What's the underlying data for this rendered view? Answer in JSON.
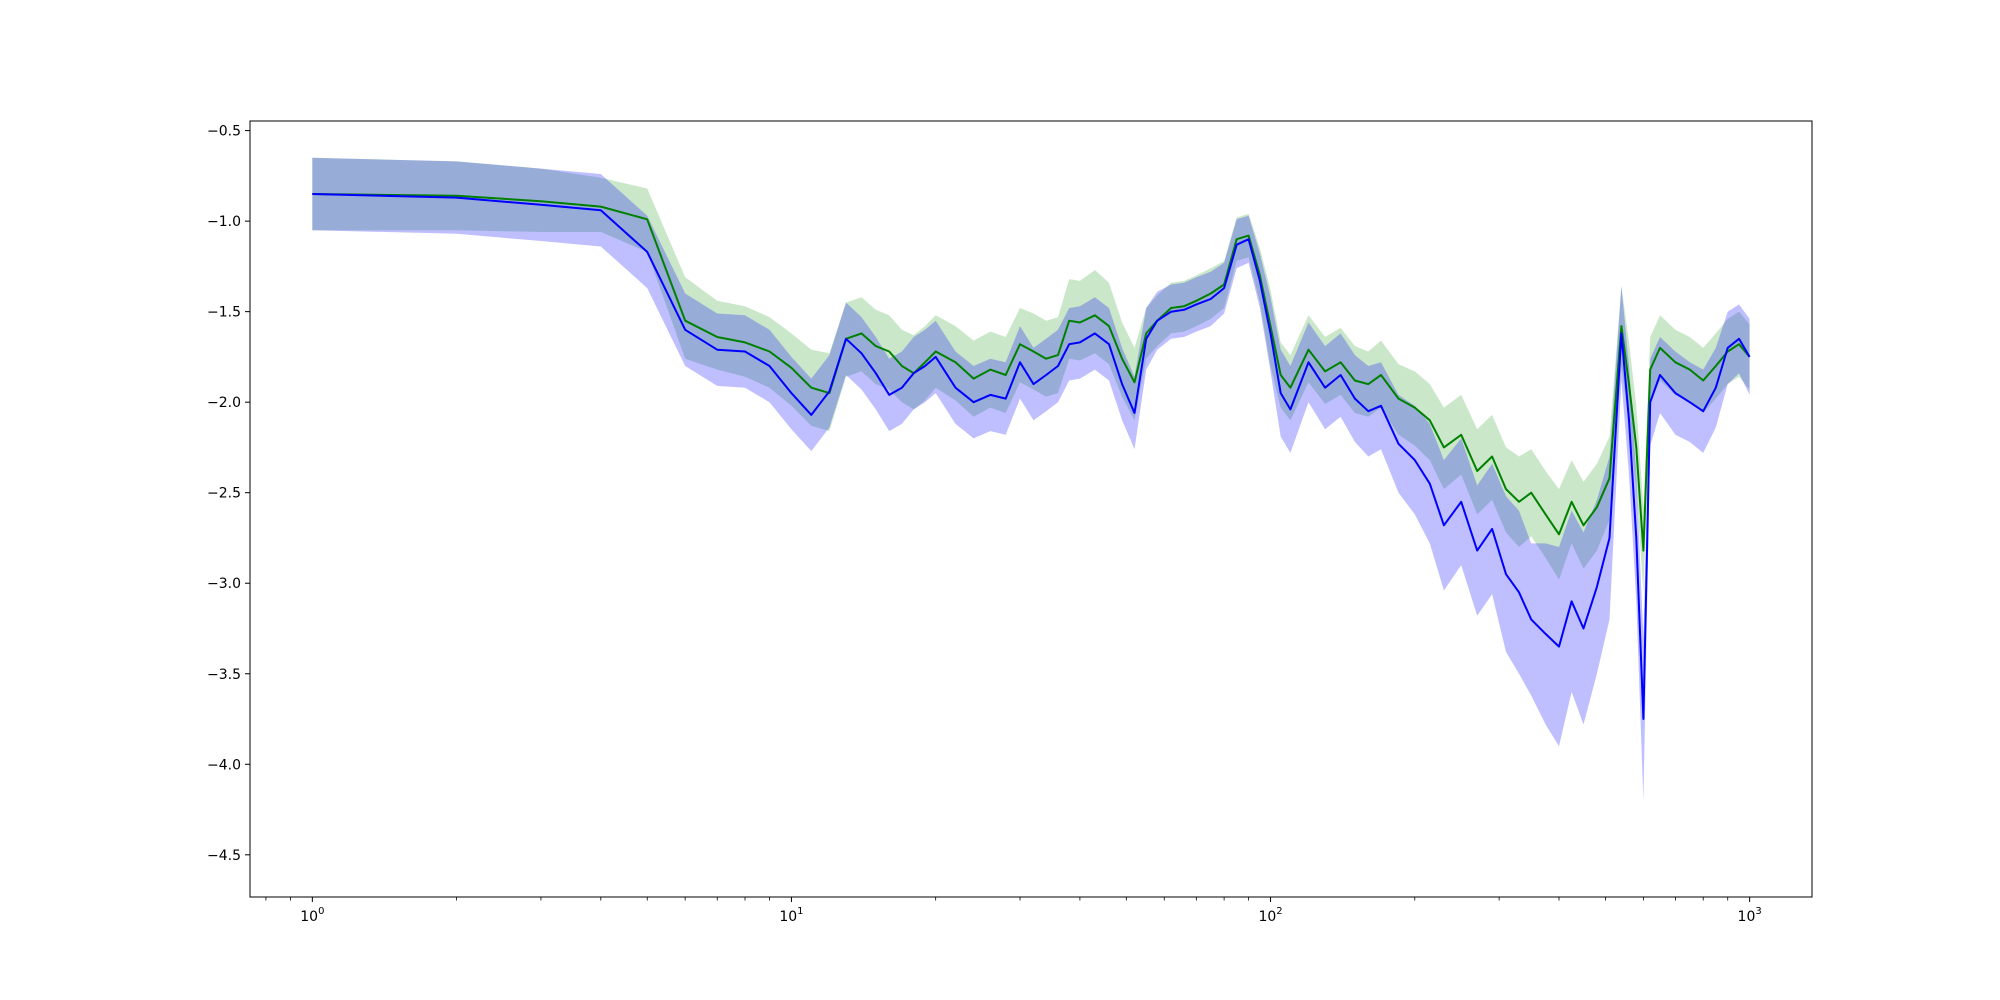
{
  "chart_data": {
    "type": "line",
    "title": "",
    "xlabel": "",
    "ylabel": "",
    "xscale": "log",
    "xlim": [
      0.7411,
      1349.4
    ],
    "ylim": [
      -4.733,
      -0.447
    ],
    "grid": false,
    "legend": "none",
    "x_tick_labels": [
      {
        "value": 1,
        "base": "10",
        "exp": "0"
      },
      {
        "value": 10,
        "base": "10",
        "exp": "1"
      },
      {
        "value": 100,
        "base": "10",
        "exp": "2"
      },
      {
        "value": 1000,
        "base": "10",
        "exp": "3"
      }
    ],
    "y_ticks": [
      -0.5,
      -1.0,
      -1.5,
      -2.0,
      -2.5,
      -3.0,
      -3.5,
      -4.0,
      -4.5
    ],
    "y_tick_labels": [
      "−0.5",
      "−1.0",
      "−1.5",
      "−2.0",
      "−2.5",
      "−3.0",
      "−3.5",
      "−4.0",
      "−4.5"
    ],
    "series": [
      {
        "color": "#008000",
        "band_color": "#2ca02c",
        "x": [
          1,
          2,
          3,
          4,
          5,
          6,
          7,
          8,
          9,
          10,
          11,
          12,
          13,
          14,
          15,
          16,
          17,
          18,
          19,
          20,
          22,
          24,
          26,
          28,
          30,
          32,
          34,
          36,
          38,
          40,
          43,
          46,
          49,
          52,
          55,
          58,
          62,
          66,
          70,
          75,
          80,
          85,
          90,
          95,
          100,
          105,
          110,
          120,
          130,
          140,
          150,
          160,
          170,
          185,
          200,
          215,
          230,
          250,
          270,
          290,
          310,
          330,
          350,
          375,
          400,
          425,
          450,
          480,
          510,
          540,
          560,
          580,
          600,
          620,
          650,
          700,
          750,
          800,
          850,
          900,
          950,
          1000
        ],
        "y": [
          -0.85,
          -0.86,
          -0.89,
          -0.92,
          -0.99,
          -1.55,
          -1.64,
          -1.67,
          -1.72,
          -1.81,
          -1.92,
          -1.95,
          -1.65,
          -1.62,
          -1.69,
          -1.72,
          -1.8,
          -1.84,
          -1.78,
          -1.72,
          -1.78,
          -1.87,
          -1.82,
          -1.85,
          -1.68,
          -1.72,
          -1.76,
          -1.74,
          -1.55,
          -1.56,
          -1.52,
          -1.58,
          -1.76,
          -1.89,
          -1.62,
          -1.55,
          -1.48,
          -1.47,
          -1.44,
          -1.4,
          -1.35,
          -1.1,
          -1.08,
          -1.3,
          -1.58,
          -1.85,
          -1.92,
          -1.71,
          -1.83,
          -1.78,
          -1.88,
          -1.9,
          -1.85,
          -1.98,
          -2.03,
          -2.1,
          -2.25,
          -2.18,
          -2.38,
          -2.3,
          -2.48,
          -2.55,
          -2.5,
          -2.62,
          -2.73,
          -2.55,
          -2.68,
          -2.58,
          -2.42,
          -1.58,
          -1.9,
          -2.25,
          -2.82,
          -1.82,
          -1.7,
          -1.78,
          -1.82,
          -1.88,
          -1.8,
          -1.72,
          -1.68,
          -1.75
        ],
        "lower": [
          -1.05,
          -1.05,
          -1.06,
          -1.06,
          -1.17,
          -1.76,
          -1.82,
          -1.86,
          -1.92,
          -2.02,
          -2.13,
          -2.16,
          -1.86,
          -1.83,
          -1.9,
          -1.93,
          -2.0,
          -2.04,
          -1.99,
          -1.92,
          -1.99,
          -2.08,
          -2.03,
          -2.06,
          -1.89,
          -1.93,
          -1.97,
          -1.95,
          -1.76,
          -1.77,
          -1.73,
          -1.79,
          -1.97,
          -2.1,
          -1.76,
          -1.69,
          -1.62,
          -1.61,
          -1.58,
          -1.54,
          -1.48,
          -1.22,
          -1.2,
          -1.45,
          -1.8,
          -2.03,
          -2.1,
          -1.89,
          -2.01,
          -1.96,
          -2.06,
          -2.08,
          -2.03,
          -2.18,
          -2.24,
          -2.32,
          -2.48,
          -2.4,
          -2.62,
          -2.54,
          -2.72,
          -2.8,
          -2.74,
          -2.86,
          -2.98,
          -2.78,
          -2.92,
          -2.82,
          -2.65,
          -1.8,
          -2.12,
          -2.48,
          -3.05,
          -2.0,
          -1.88,
          -1.96,
          -2.0,
          -2.06,
          -1.98,
          -1.9,
          -1.86,
          -1.93
        ],
        "upper": [
          -0.65,
          -0.67,
          -0.71,
          -0.76,
          -0.82,
          -1.31,
          -1.44,
          -1.47,
          -1.53,
          -1.62,
          -1.71,
          -1.73,
          -1.45,
          -1.42,
          -1.49,
          -1.52,
          -1.6,
          -1.63,
          -1.58,
          -1.52,
          -1.58,
          -1.66,
          -1.61,
          -1.64,
          -1.48,
          -1.51,
          -1.55,
          -1.53,
          -1.32,
          -1.33,
          -1.27,
          -1.34,
          -1.56,
          -1.7,
          -1.48,
          -1.41,
          -1.34,
          -1.33,
          -1.3,
          -1.26,
          -1.22,
          -0.98,
          -0.96,
          -1.15,
          -1.38,
          -1.67,
          -1.74,
          -1.52,
          -1.64,
          -1.59,
          -1.69,
          -1.72,
          -1.66,
          -1.79,
          -1.83,
          -1.9,
          -2.03,
          -1.96,
          -2.15,
          -2.07,
          -2.25,
          -2.3,
          -2.26,
          -2.38,
          -2.48,
          -2.32,
          -2.44,
          -2.34,
          -2.19,
          -1.36,
          -1.67,
          -2.02,
          -2.58,
          -1.64,
          -1.52,
          -1.6,
          -1.64,
          -1.7,
          -1.62,
          -1.54,
          -1.5,
          -1.57
        ]
      },
      {
        "color": "#0000ff",
        "band_color": "#0000ff",
        "x": [
          1,
          2,
          3,
          4,
          5,
          6,
          7,
          8,
          9,
          10,
          11,
          12,
          13,
          14,
          15,
          16,
          17,
          18,
          19,
          20,
          22,
          24,
          26,
          28,
          30,
          32,
          34,
          36,
          38,
          40,
          43,
          46,
          49,
          52,
          55,
          58,
          62,
          66,
          70,
          75,
          80,
          85,
          90,
          95,
          100,
          105,
          110,
          120,
          130,
          140,
          150,
          160,
          170,
          185,
          200,
          215,
          230,
          250,
          270,
          290,
          310,
          330,
          350,
          375,
          400,
          425,
          450,
          480,
          510,
          540,
          560,
          580,
          600,
          620,
          650,
          700,
          750,
          800,
          850,
          900,
          950,
          1000
        ],
        "y": [
          -0.85,
          -0.87,
          -0.91,
          -0.94,
          -1.17,
          -1.6,
          -1.71,
          -1.72,
          -1.8,
          -1.95,
          -2.07,
          -1.94,
          -1.65,
          -1.73,
          -1.84,
          -1.96,
          -1.92,
          -1.84,
          -1.8,
          -1.75,
          -1.92,
          -2.0,
          -1.96,
          -1.98,
          -1.78,
          -1.9,
          -1.85,
          -1.8,
          -1.68,
          -1.67,
          -1.62,
          -1.68,
          -1.9,
          -2.06,
          -1.65,
          -1.55,
          -1.5,
          -1.49,
          -1.46,
          -1.43,
          -1.37,
          -1.13,
          -1.1,
          -1.33,
          -1.62,
          -1.95,
          -2.04,
          -1.78,
          -1.92,
          -1.85,
          -1.98,
          -2.05,
          -2.02,
          -2.23,
          -2.32,
          -2.45,
          -2.68,
          -2.55,
          -2.82,
          -2.7,
          -2.95,
          -3.05,
          -3.2,
          -3.28,
          -3.35,
          -3.1,
          -3.25,
          -3.02,
          -2.75,
          -1.62,
          -2.1,
          -2.75,
          -3.75,
          -2.0,
          -1.85,
          -1.95,
          -2.0,
          -2.05,
          -1.92,
          -1.7,
          -1.65,
          -1.75
        ],
        "lower": [
          -1.05,
          -1.07,
          -1.11,
          -1.14,
          -1.37,
          -1.8,
          -1.91,
          -1.92,
          -2.0,
          -2.15,
          -2.27,
          -2.14,
          -1.85,
          -1.93,
          -2.04,
          -2.16,
          -2.12,
          -2.04,
          -2.0,
          -1.95,
          -2.12,
          -2.2,
          -2.16,
          -2.18,
          -1.98,
          -2.1,
          -2.05,
          -2.0,
          -1.88,
          -1.87,
          -1.82,
          -1.88,
          -2.1,
          -2.26,
          -1.82,
          -1.71,
          -1.65,
          -1.64,
          -1.61,
          -1.58,
          -1.51,
          -1.26,
          -1.23,
          -1.48,
          -1.83,
          -2.19,
          -2.28,
          -2.0,
          -2.15,
          -2.08,
          -2.22,
          -2.3,
          -2.26,
          -2.5,
          -2.62,
          -2.78,
          -3.04,
          -2.9,
          -3.18,
          -3.06,
          -3.38,
          -3.5,
          -3.62,
          -3.78,
          -3.9,
          -3.6,
          -3.78,
          -3.5,
          -3.2,
          -1.88,
          -2.4,
          -3.1,
          -4.2,
          -2.24,
          -2.06,
          -2.18,
          -2.22,
          -2.28,
          -2.14,
          -1.9,
          -1.84,
          -1.96
        ],
        "upper": [
          -0.65,
          -0.67,
          -0.71,
          -0.74,
          -0.97,
          -1.4,
          -1.51,
          -1.52,
          -1.6,
          -1.75,
          -1.87,
          -1.74,
          -1.45,
          -1.53,
          -1.64,
          -1.76,
          -1.72,
          -1.64,
          -1.6,
          -1.55,
          -1.72,
          -1.8,
          -1.76,
          -1.78,
          -1.58,
          -1.7,
          -1.65,
          -1.6,
          -1.48,
          -1.47,
          -1.42,
          -1.48,
          -1.7,
          -1.86,
          -1.48,
          -1.39,
          -1.35,
          -1.34,
          -1.31,
          -1.28,
          -1.23,
          -0.99,
          -0.97,
          -1.18,
          -1.42,
          -1.71,
          -1.8,
          -1.56,
          -1.69,
          -1.62,
          -1.74,
          -1.8,
          -1.78,
          -1.96,
          -2.02,
          -2.12,
          -2.32,
          -2.2,
          -2.46,
          -2.34,
          -2.52,
          -2.6,
          -2.78,
          -2.78,
          -2.8,
          -2.6,
          -2.72,
          -2.54,
          -2.3,
          -1.36,
          -1.8,
          -2.4,
          -3.3,
          -1.76,
          -1.64,
          -1.72,
          -1.78,
          -1.82,
          -1.7,
          -1.5,
          -1.46,
          -1.54
        ]
      }
    ]
  }
}
